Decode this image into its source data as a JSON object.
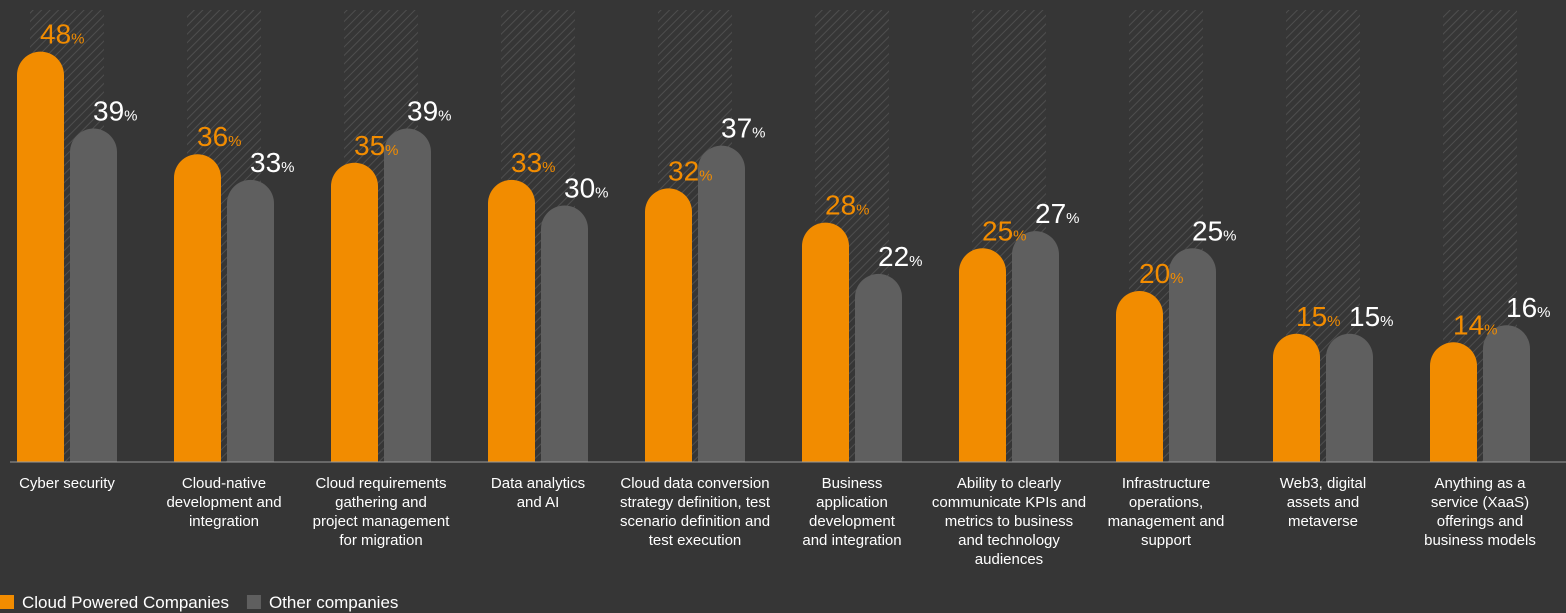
{
  "chart_data": {
    "type": "bar",
    "categories": [
      "Cyber security",
      "Cloud-native\ndevelopment and\nintegration",
      "Cloud requirements\ngathering and\nproject management\nfor migration",
      "Data analytics\nand AI",
      "Cloud data conversion\nstrategy definition, test\nscenario definition and\ntest execution",
      "Business\napplication\ndevelopment\nand integration",
      "Ability to clearly\ncommunicate KPIs and\nmetrics to business\nand technology\naudiences",
      "Infrastructure\noperations,\nmanagement and\nsupport",
      "Web3, digital\nassets and\nmetaverse",
      "Anything as a\nservice (XaaS)\nofferings and\nbusiness models"
    ],
    "series": [
      {
        "name": "Cloud Powered Companies",
        "color": "#f28c00",
        "values": [
          48,
          36,
          35,
          33,
          32,
          28,
          25,
          20,
          15,
          14
        ],
        "value_labels": [
          "48%",
          "36%",
          "35%",
          "33%",
          "32%",
          "28%",
          "25%",
          "20%",
          "15%",
          "14%"
        ]
      },
      {
        "name": "Other companies",
        "color": "#5f5f5f",
        "values": [
          39,
          33,
          39,
          30,
          37,
          22,
          27,
          25,
          15,
          16
        ],
        "value_labels": [
          "39%",
          "33%",
          "39%",
          "30%",
          "37%",
          "22%",
          "27%",
          "25%",
          "15%",
          "16%"
        ]
      }
    ],
    "ylim": [
      0,
      50
    ],
    "legend": "bottom-left"
  }
}
